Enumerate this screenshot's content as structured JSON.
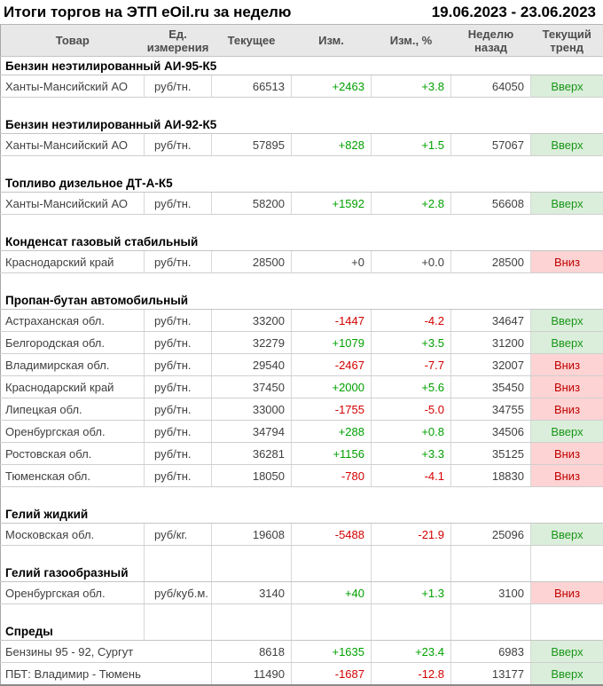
{
  "title": "Итоги торгов на ЭТП eOil.ru за неделю",
  "period": "19.06.2023 - 23.06.2023",
  "colors": {
    "positive_change": "#00a000",
    "negative_change": "#d40000",
    "neutral_change": "#404040",
    "trend_up_bg": "#dbeedb",
    "trend_up_text": "#189618",
    "trend_down_bg": "#fdd3d3",
    "trend_down_text": "#c00000",
    "header_bg": "#e8e8e8"
  },
  "table": {
    "columns": [
      "Товар",
      "Ед.\nизмерения",
      "Текущее",
      "Изм.",
      "Изм., %",
      "Неделю\nназад",
      "Текущий\nтренд"
    ],
    "trend_labels": {
      "up": "Вверх",
      "down": "Вниз"
    },
    "sections": [
      {
        "name": "Бензин неэтилированный АИ-95-К5",
        "bordered": false,
        "rows": [
          {
            "product": "Ханты-Мансийский АО",
            "unit": "руб/тн.",
            "current": "66513",
            "change": "+2463",
            "change_pct": "+3.8",
            "week_ago": "64050",
            "trend": "Вверх",
            "trend_dir": "up"
          }
        ]
      },
      {
        "name": "Бензин неэтилированный АИ-92-К5",
        "bordered": false,
        "rows": [
          {
            "product": "Ханты-Мансийский АО",
            "unit": "руб/тн.",
            "current": "57895",
            "change": "+828",
            "change_pct": "+1.5",
            "week_ago": "57067",
            "trend": "Вверх",
            "trend_dir": "up"
          }
        ]
      },
      {
        "name": "Топливо дизельное ДТ-А-К5",
        "bordered": false,
        "rows": [
          {
            "product": "Ханты-Мансийский АО",
            "unit": "руб/тн.",
            "current": "58200",
            "change": "+1592",
            "change_pct": "+2.8",
            "week_ago": "56608",
            "trend": "Вверх",
            "trend_dir": "up"
          }
        ]
      },
      {
        "name": "Конденсат газовый стабильный",
        "bordered": false,
        "rows": [
          {
            "product": "Краснодарский край",
            "unit": "руб/тн.",
            "current": "28500",
            "change": "+0",
            "change_pct": "+0.0",
            "week_ago": "28500",
            "trend": "Вниз",
            "trend_dir": "down"
          }
        ]
      },
      {
        "name": "Пропан-бутан автомобильный",
        "bordered": false,
        "rows": [
          {
            "product": "Астраханская обл.",
            "unit": "руб/тн.",
            "current": "33200",
            "change": "-1447",
            "change_pct": "-4.2",
            "week_ago": "34647",
            "trend": "Вверх",
            "trend_dir": "up"
          },
          {
            "product": "Белгородская обл.",
            "unit": "руб/тн.",
            "current": "32279",
            "change": "+1079",
            "change_pct": "+3.5",
            "week_ago": "31200",
            "trend": "Вверх",
            "trend_dir": "up"
          },
          {
            "product": "Владимирская обл.",
            "unit": "руб/тн.",
            "current": "29540",
            "change": "-2467",
            "change_pct": "-7.7",
            "week_ago": "32007",
            "trend": "Вниз",
            "trend_dir": "down"
          },
          {
            "product": "Краснодарский край",
            "unit": "руб/тн.",
            "current": "37450",
            "change": "+2000",
            "change_pct": "+5.6",
            "week_ago": "35450",
            "trend": "Вниз",
            "trend_dir": "down"
          },
          {
            "product": "Липецкая обл.",
            "unit": "руб/тн.",
            "current": "33000",
            "change": "-1755",
            "change_pct": "-5.0",
            "week_ago": "34755",
            "trend": "Вниз",
            "trend_dir": "down"
          },
          {
            "product": "Оренбургская обл.",
            "unit": "руб/тн.",
            "current": "34794",
            "change": "+288",
            "change_pct": "+0.8",
            "week_ago": "34506",
            "trend": "Вверх",
            "trend_dir": "up"
          },
          {
            "product": "Ростовская обл.",
            "unit": "руб/тн.",
            "current": "36281",
            "change": "+1156",
            "change_pct": "+3.3",
            "week_ago": "35125",
            "trend": "Вниз",
            "trend_dir": "down"
          },
          {
            "product": "Тюменская обл.",
            "unit": "руб/тн.",
            "current": "18050",
            "change": "-780",
            "change_pct": "-4.1",
            "week_ago": "18830",
            "trend": "Вниз",
            "trend_dir": "down"
          }
        ]
      },
      {
        "name": "Гелий жидкий",
        "bordered": false,
        "rows": [
          {
            "product": "Московская обл.",
            "unit": "руб/кг.",
            "current": "19608",
            "change": "-5488",
            "change_pct": "-21.9",
            "week_ago": "25096",
            "trend": "Вверх",
            "trend_dir": "up"
          }
        ]
      },
      {
        "name": "Гелий газообразный",
        "bordered": true,
        "rows": [
          {
            "product": "Оренбургская обл.",
            "unit": "руб/куб.м.",
            "current": "3140",
            "change": "+40",
            "change_pct": "+1.3",
            "week_ago": "3100",
            "trend": "Вниз",
            "trend_dir": "down"
          }
        ]
      },
      {
        "name": "Спреды",
        "bordered": true,
        "rows": [
          {
            "product": "Бензины 95 - 92, Сургут",
            "unit": "",
            "span_unit": true,
            "current": "8618",
            "change": "+1635",
            "change_pct": "+23.4",
            "week_ago": "6983",
            "trend": "Вверх",
            "trend_dir": "up"
          },
          {
            "product": "ПБТ: Владимир - Тюмень",
            "unit": "",
            "span_unit": true,
            "current": "11490",
            "change": "-1687",
            "change_pct": "-12.8",
            "week_ago": "13177",
            "trend": "Вверх",
            "trend_dir": "up"
          }
        ]
      }
    ]
  }
}
